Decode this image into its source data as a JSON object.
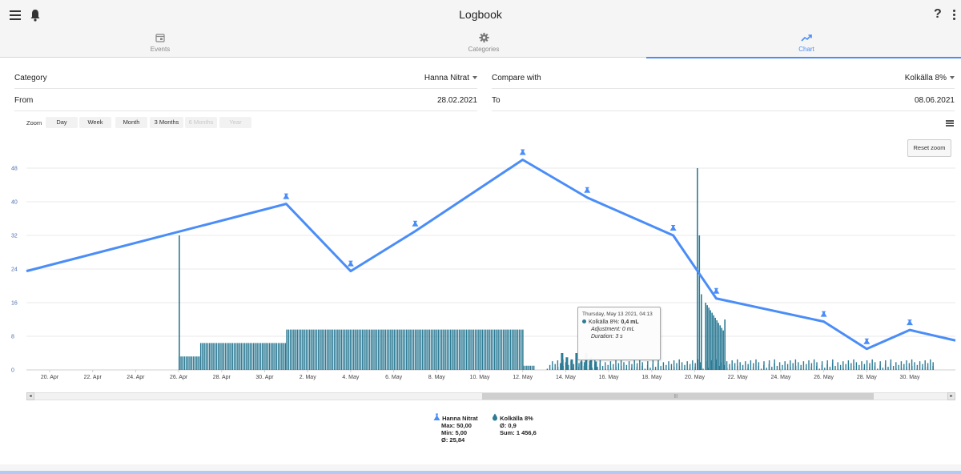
{
  "app": {
    "title": "Logbook"
  },
  "tabs": [
    {
      "label": "Events",
      "icon": "calendar-icon"
    },
    {
      "label": "Categories",
      "icon": "gear-icon"
    },
    {
      "label": "Chart",
      "icon": "trend-icon",
      "active": true
    }
  ],
  "form": {
    "category_label": "Category",
    "category_value": "Hanna Nitrat",
    "compare_label": "Compare with",
    "compare_value": "Kolkälla 8%",
    "from_label": "From",
    "from_value": "28.02.2021",
    "to_label": "To",
    "to_value": "08.06.2021"
  },
  "zoom": {
    "label": "Zoom",
    "buttons": [
      "Day",
      "Week",
      "Month",
      "3 Months",
      "6 Months",
      "Year"
    ]
  },
  "reset_zoom_label": "Reset zoom",
  "tooltip": {
    "date": "Thursday, May 13 2021, 04:13",
    "series": "Kolkälla 8%:",
    "value": "0,4 mL",
    "adjustment": "Adjustment: 0 mL",
    "duration": "Duration: 3 s"
  },
  "legend": [
    {
      "name": "Hanna Nitrat",
      "icon": "flask-icon",
      "color": "#4a8df8",
      "stats": [
        "Max: 50,00",
        "Min: 5,00",
        "Ø: 25,84"
      ]
    },
    {
      "name": "Kolkälla 8%",
      "icon": "drop-icon",
      "color": "#2d7b95",
      "stats": [
        "Ø: 0,9",
        "Sum: 1 456,6"
      ]
    }
  ],
  "colors": {
    "accent": "#4a8df8",
    "bar": "#2d7b95"
  },
  "chart_data": {
    "type": "line",
    "y_ticks": [
      0,
      8,
      16,
      24,
      32,
      40,
      48
    ],
    "ylim": [
      0,
      48
    ],
    "x_ticks": [
      "20. Apr",
      "22. Apr",
      "24. Apr",
      "26. Apr",
      "28. Apr",
      "30. Apr",
      "2. May",
      "4. May",
      "6. May",
      "8. May",
      "10. May",
      "12. May",
      "14. May",
      "16. May",
      "18. May",
      "20. May",
      "22. May",
      "24. May",
      "26. May",
      "28. May",
      "30. May"
    ],
    "series": [
      {
        "name": "Hanna Nitrat",
        "type": "line",
        "x": [
          "19.04.2021",
          "01.05.2021",
          "04.05.2021",
          "07.05.2021",
          "12.05.2021",
          "15.05.2021",
          "19.05.2021",
          "21.05.2021",
          "26.05.2021",
          "28.05.2021",
          "30.05.2021",
          "01.06.2021"
        ],
        "values": [
          23.5,
          39.5,
          23.5,
          33,
          50,
          41,
          32,
          17,
          11.5,
          5,
          9.5,
          7
        ]
      },
      {
        "name": "Kolkälla 8%",
        "type": "column",
        "segments": [
          {
            "from": "26.04.2021",
            "to": "27.04.2021",
            "value": 3.2
          },
          {
            "from": "27.04.2021",
            "to": "01.05.2021",
            "value": 6.4
          },
          {
            "from": "01.05.2021",
            "to": "12.05.2021",
            "value": 9.6
          },
          {
            "from": "12.05.2021",
            "to": "12.05.2021",
            "value": 1.0
          }
        ],
        "spikes": [
          {
            "x": "26.04.2021",
            "value": 32
          },
          {
            "x": "20.05.2021",
            "value": 48
          },
          {
            "x": "20.05.2021",
            "value": 32
          },
          {
            "x": "20.05.2021",
            "value": 18
          },
          {
            "x": "21.05.2021",
            "value": 12
          }
        ]
      }
    ]
  }
}
